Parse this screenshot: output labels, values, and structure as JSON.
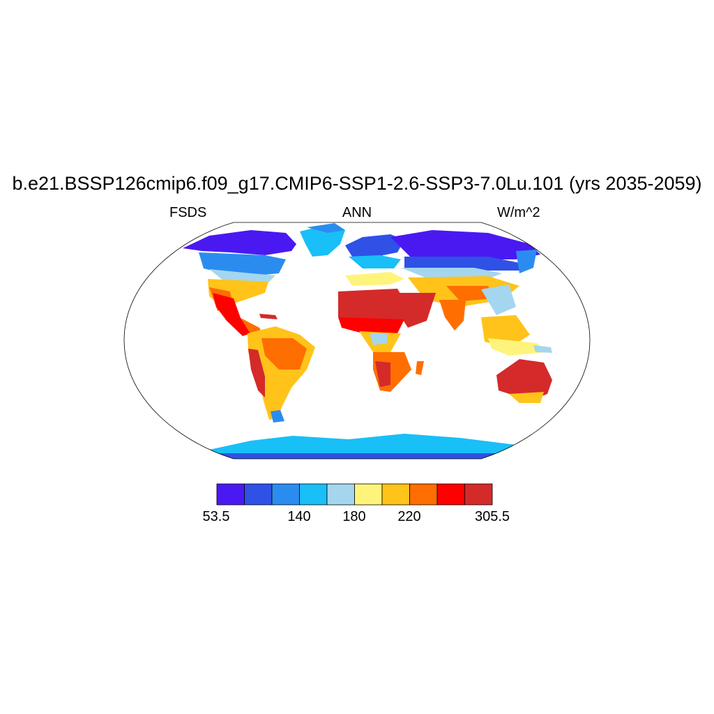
{
  "title": "b.e21.BSSP126cmip6.f09_g17.CMIP6-SSP1-2.6-SSP3-7.0Lu.101 (yrs 2035-2059)",
  "left_string": "FSDS",
  "center_string": "ANN",
  "right_string": "W/m^2",
  "colorbar": {
    "colors": [
      "#4a19f2",
      "#2f51e6",
      "#2b8cf0",
      "#19bff7",
      "#a4d6ef",
      "#fff47b",
      "#ffc31a",
      "#ff6e00",
      "#ff0000",
      "#d42a2a"
    ],
    "labels": [
      "53.5",
      "140",
      "180",
      "220",
      "305.5"
    ]
  }
}
